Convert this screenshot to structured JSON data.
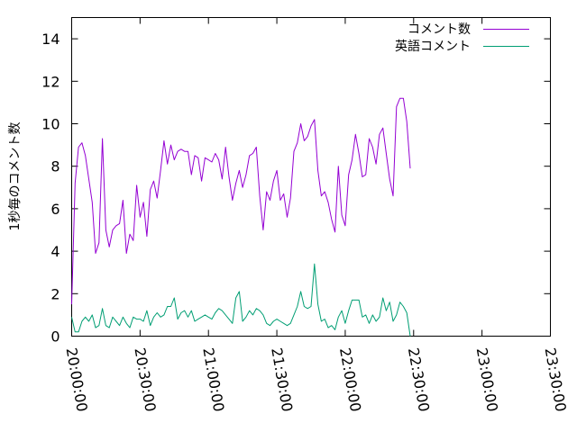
{
  "chart_data": {
    "type": "line",
    "title": "",
    "xlabel": "",
    "ylabel": "1秒毎のコメント数",
    "ylim": [
      0,
      15
    ],
    "yticks": [
      0,
      2,
      4,
      6,
      8,
      10,
      12,
      14
    ],
    "x_tick_labels": [
      "20:00:00",
      "20:30:00",
      "21:00:00",
      "21:30:00",
      "22:00:00",
      "22:30:00",
      "23:00:00",
      "23:30:00"
    ],
    "xlim_minutes": [
      0,
      210
    ],
    "x_interval_minutes": 1.5,
    "grid": false,
    "legend_position": "top-right",
    "series": [
      {
        "name": "コメント数",
        "color": "#9400d3",
        "values": [
          1.5,
          7.2,
          8.9,
          9.1,
          8.5,
          7.4,
          6.3,
          3.9,
          4.4,
          9.3,
          5.0,
          4.2,
          5.0,
          5.2,
          5.3,
          6.4,
          3.9,
          4.8,
          4.5,
          7.1,
          5.6,
          6.3,
          4.7,
          6.9,
          7.3,
          6.5,
          7.8,
          9.2,
          8.1,
          9.0,
          8.3,
          8.7,
          8.8,
          8.7,
          8.7,
          7.6,
          8.5,
          8.4,
          7.3,
          8.4,
          8.3,
          8.2,
          8.6,
          8.3,
          7.4,
          8.9,
          7.5,
          6.4,
          7.2,
          7.8,
          7.0,
          7.6,
          8.5,
          8.6,
          8.9,
          6.6,
          5.0,
          6.8,
          6.4,
          7.3,
          7.8,
          6.4,
          6.7,
          5.6,
          6.5,
          8.7,
          9.1,
          10.0,
          9.2,
          9.4,
          9.9,
          10.2,
          7.8,
          6.6,
          6.8,
          6.3,
          5.5,
          4.9,
          8.0,
          5.7,
          5.2,
          7.6,
          8.3,
          9.5,
          8.6,
          7.5,
          7.6,
          9.3,
          8.9,
          8.1,
          9.5,
          9.8,
          8.6,
          7.4,
          6.6,
          10.8,
          11.2,
          11.2,
          10.1,
          7.9
        ]
      },
      {
        "name": "英語コメント",
        "color": "#009e73",
        "values": [
          0.9,
          0.2,
          0.2,
          0.7,
          0.9,
          0.7,
          1.0,
          0.4,
          0.5,
          1.3,
          0.5,
          0.4,
          0.9,
          0.7,
          0.5,
          0.9,
          0.6,
          0.4,
          0.9,
          0.8,
          0.8,
          0.7,
          1.2,
          0.5,
          0.9,
          1.1,
          0.9,
          1.0,
          1.4,
          1.4,
          1.8,
          0.8,
          1.1,
          1.2,
          0.9,
          1.2,
          0.7,
          0.8,
          0.9,
          1.0,
          0.9,
          0.8,
          1.1,
          1.3,
          1.2,
          1.0,
          0.8,
          0.6,
          1.8,
          2.1,
          0.7,
          0.9,
          1.2,
          1.0,
          1.3,
          1.2,
          1.0,
          0.6,
          0.5,
          0.7,
          0.8,
          0.7,
          0.6,
          0.5,
          0.6,
          1.0,
          1.4,
          2.1,
          1.4,
          1.3,
          1.4,
          3.4,
          1.5,
          0.7,
          0.8,
          0.4,
          0.5,
          0.3,
          0.9,
          1.2,
          0.6,
          1.2,
          1.7,
          1.7,
          1.7,
          0.9,
          1.0,
          0.6,
          1.0,
          0.7,
          0.9,
          1.8,
          1.2,
          1.6,
          0.7,
          1.0,
          1.6,
          1.4,
          1.1,
          0.0
        ]
      }
    ]
  }
}
